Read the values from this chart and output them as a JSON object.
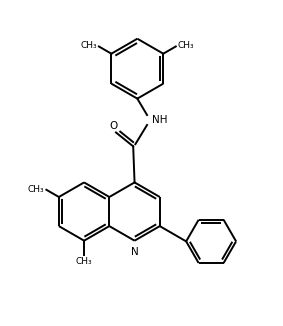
{
  "background_color": "#ffffff",
  "line_color": "#000000",
  "line_width": 1.4,
  "text_color": "#000000",
  "font_size": 7.5,
  "figsize": [
    2.83,
    3.26
  ],
  "dpi": 100,
  "xlim": [
    0,
    10
  ],
  "ylim": [
    0,
    11.5
  ]
}
